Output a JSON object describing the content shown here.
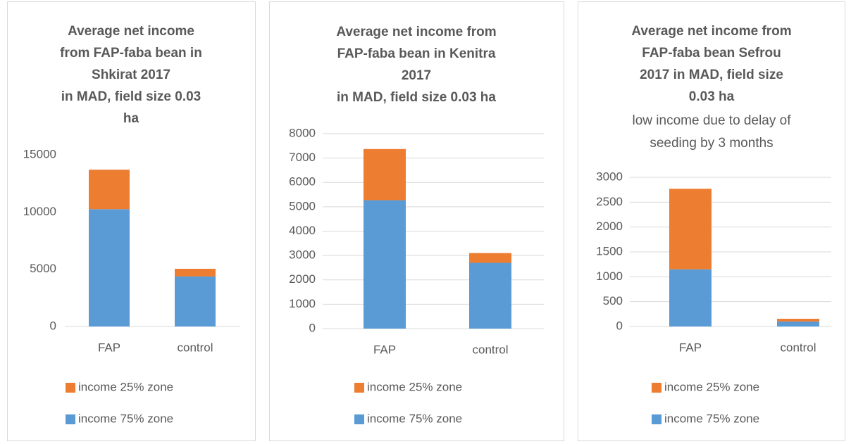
{
  "chart_data": [
    {
      "type": "bar",
      "stacked": true,
      "title": [
        "Average net income",
        "from FAP-faba bean in",
        "Shkirat 2017",
        "in MAD, field size 0.03",
        "ha"
      ],
      "categories": [
        "FAP",
        "control"
      ],
      "series": [
        {
          "name": "income 75% zone",
          "color": "#5b9bd5",
          "values": [
            10250,
            4370
          ]
        },
        {
          "name": "income 25% zone",
          "color": "#ed7d31",
          "values": [
            3450,
            670
          ]
        }
      ],
      "ylim": [
        0,
        15000
      ],
      "yticks": [
        0,
        5000,
        10000,
        15000
      ],
      "grid": false,
      "legend": "bottom"
    },
    {
      "type": "bar",
      "stacked": true,
      "title": [
        "Average net income from",
        "FAP-faba bean in Kenitra",
        "2017",
        "in MAD, field size 0.03 ha"
      ],
      "categories": [
        "FAP",
        "control"
      ],
      "series": [
        {
          "name": "income 75% zone",
          "color": "#5b9bd5",
          "values": [
            5270,
            2700
          ]
        },
        {
          "name": "income 25% zone",
          "color": "#ed7d31",
          "values": [
            2100,
            400
          ]
        }
      ],
      "ylim": [
        0,
        8000
      ],
      "yticks": [
        0,
        1000,
        2000,
        3000,
        4000,
        5000,
        6000,
        7000,
        8000
      ],
      "grid": true,
      "legend": "bottom"
    },
    {
      "type": "bar",
      "stacked": true,
      "title": [
        "Average net income from",
        "FAP-faba bean Sefrou",
        "2017 in MAD, field size",
        "0.03 ha"
      ],
      "subtitle": [
        "low income due to delay of",
        "seeding by 3 months"
      ],
      "categories": [
        "FAP",
        "control"
      ],
      "series": [
        {
          "name": "income 75% zone",
          "color": "#5b9bd5",
          "values": [
            1150,
            100
          ]
        },
        {
          "name": "income 25% zone",
          "color": "#ed7d31",
          "values": [
            1620,
            55
          ]
        }
      ],
      "ylim": [
        0,
        3000
      ],
      "yticks": [
        0,
        500,
        1000,
        1500,
        2000,
        2500,
        3000
      ],
      "grid": true,
      "legend": "bottom"
    }
  ]
}
